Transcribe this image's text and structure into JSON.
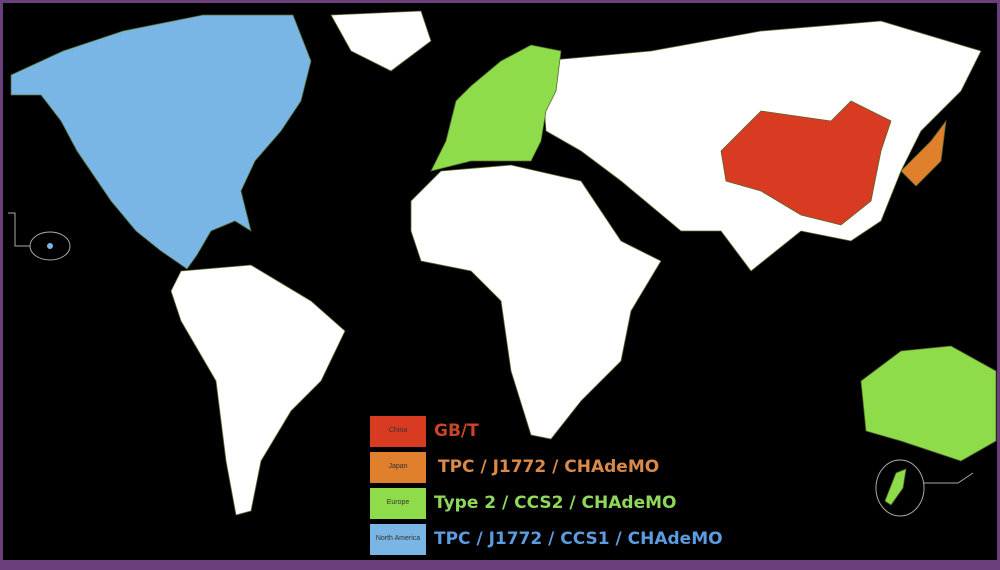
{
  "colors": {
    "china": "#d93a22",
    "japan": "#e07f2c",
    "europe": "#8fdc4a",
    "north_america": "#79b6e6",
    "other": "#ffffff",
    "ocean": "#000000",
    "frame": "#6b3f7d"
  },
  "legend": [
    {
      "region": "China",
      "standard": "GB/T",
      "color": "#d93a22",
      "text_color": "#c8452c"
    },
    {
      "region": "Japan",
      "standard": "TPC / J1772 / CHAdeMO",
      "color": "#e07f2c",
      "text_color": "#d98a4a"
    },
    {
      "region": "Europe",
      "standard": "Type 2 / CCS2 / CHAdeMO",
      "color": "#8fdc4a",
      "text_color": "#8fd85a"
    },
    {
      "region": "North America",
      "standard": "TPC / J1772 / CCS1 / CHAdeMO",
      "color": "#79b6e6",
      "text_color": "#5b9be0"
    }
  ]
}
